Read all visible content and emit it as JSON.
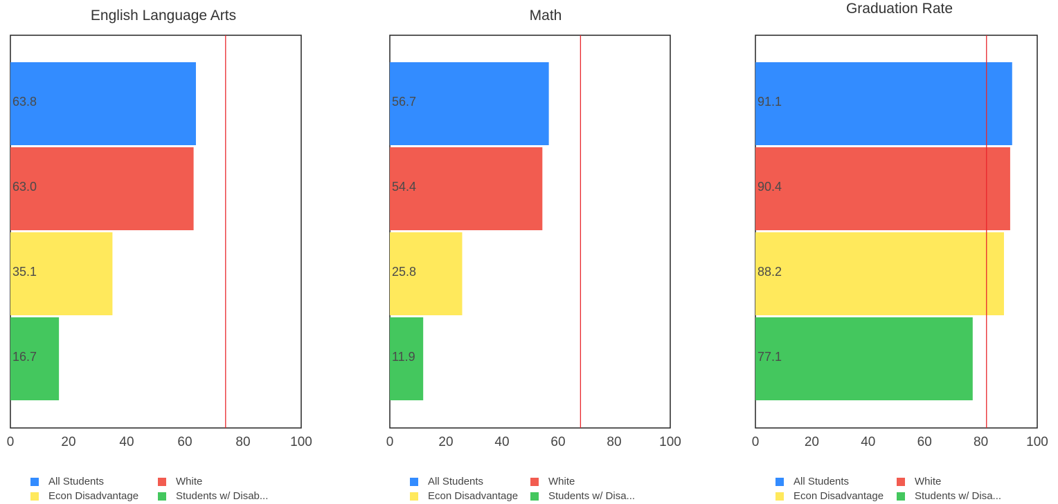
{
  "colors": {
    "All Students": "#338cff",
    "White": "#f25c50",
    "Econ Disadvantage": "#ffe95c",
    "Students w/ Disabilities": "#44c75e",
    "target_line": "#e8262b",
    "frame": "#222222"
  },
  "chart_data": [
    {
      "type": "bar",
      "orientation": "horizontal",
      "title": "English Language Arts",
      "categories": [
        "All Students",
        "White",
        "Econ Disadvantage",
        "Students w/ Disabilities"
      ],
      "values": [
        63.8,
        63.0,
        35.1,
        16.7
      ],
      "data_labels": [
        "63.8",
        "63.0",
        "35.1",
        "16.7"
      ],
      "xlim": [
        0,
        100
      ],
      "x_ticks": [
        "0",
        "20",
        "40",
        "60",
        "80",
        "100"
      ],
      "target_line": 74,
      "legend_placement": "bottom",
      "legend_labels": [
        "All Students",
        "White",
        "Econ Disadvantage",
        "Students w/ Disab..."
      ]
    },
    {
      "type": "bar",
      "orientation": "horizontal",
      "title": "Math",
      "categories": [
        "All Students",
        "White",
        "Econ Disadvantage",
        "Students w/ Disabilities"
      ],
      "values": [
        56.7,
        54.4,
        25.8,
        11.9
      ],
      "data_labels": [
        "56.7",
        "54.4",
        "25.8",
        "11.9"
      ],
      "xlim": [
        0,
        100
      ],
      "x_ticks": [
        "0",
        "20",
        "40",
        "60",
        "80",
        "100"
      ],
      "target_line": 68,
      "legend_placement": "bottom",
      "legend_labels": [
        "All Students",
        "White",
        "Econ Disadvantage",
        "Students w/ Disa..."
      ]
    },
    {
      "type": "bar",
      "orientation": "horizontal",
      "title": "Graduation Rate",
      "categories": [
        "All Students",
        "White",
        "Econ Disadvantage",
        "Students w/ Disabilities"
      ],
      "values": [
        91.1,
        90.4,
        88.2,
        77.1
      ],
      "data_labels": [
        "91.1",
        "90.4",
        "88.2",
        "77.1"
      ],
      "xlim": [
        0,
        100
      ],
      "x_ticks": [
        "0",
        "20",
        "40",
        "60",
        "80",
        "100"
      ],
      "target_line": 82,
      "legend_placement": "bottom",
      "legend_labels": [
        "All Students",
        "White",
        "Econ Disadvantage",
        "Students w/ Disa..."
      ]
    }
  ]
}
